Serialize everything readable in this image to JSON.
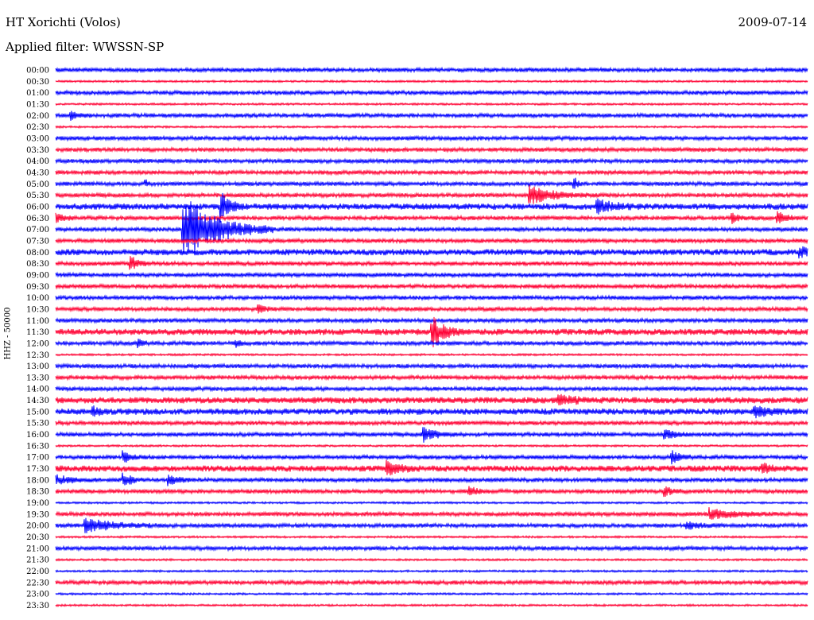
{
  "header": {
    "station": "HT Xorichti (Volos)",
    "date": "2009-07-14",
    "filter": "Applied filter: WWSSN-SP"
  },
  "chart_data": {
    "type": "line",
    "title": "HT Xorichti (Volos)",
    "subtitle": "Applied filter: WWSSN-SP",
    "ylabel": "HHZ - 50000",
    "xlabel": "",
    "grid": false,
    "colors": [
      "#0000ff",
      "#ff0033"
    ],
    "rows": [
      "00:00",
      "00:30",
      "01:00",
      "01:30",
      "02:00",
      "02:30",
      "03:00",
      "03:30",
      "04:00",
      "04:30",
      "05:00",
      "05:30",
      "06:00",
      "06:30",
      "07:00",
      "07:30",
      "08:00",
      "08:30",
      "09:00",
      "09:30",
      "10:00",
      "10:30",
      "11:00",
      "11:30",
      "12:00",
      "12:30",
      "13:00",
      "13:30",
      "14:00",
      "14:30",
      "15:00",
      "15:30",
      "16:00",
      "16:30",
      "17:00",
      "17:30",
      "18:00",
      "18:30",
      "19:00",
      "19:30",
      "20:00",
      "20:30",
      "21:00",
      "21:30",
      "22:00",
      "22:30",
      "23:00",
      "23:30"
    ],
    "noise_level": [
      2,
      1,
      2,
      1,
      2,
      1,
      2,
      2,
      2,
      2,
      2,
      2,
      3,
      2,
      2,
      2,
      3,
      2,
      2,
      2,
      2,
      2,
      2,
      3,
      2,
      1,
      2,
      2,
      2,
      3,
      3,
      2,
      2,
      1,
      2,
      3,
      2,
      2,
      1,
      2,
      2,
      1,
      2,
      1,
      1,
      2,
      1,
      1
    ],
    "events": [
      {
        "row": 4,
        "pos": 0.02,
        "amp": 6,
        "dur": 0.01
      },
      {
        "row": 10,
        "pos": 0.12,
        "amp": 4,
        "dur": 0.003
      },
      {
        "row": 10,
        "pos": 0.69,
        "amp": 8,
        "dur": 0.005
      },
      {
        "row": 11,
        "pos": 0.63,
        "amp": 12,
        "dur": 0.03
      },
      {
        "row": 12,
        "pos": 0.22,
        "amp": 20,
        "dur": 0.01
      },
      {
        "row": 12,
        "pos": 0.72,
        "amp": 8,
        "dur": 0.02
      },
      {
        "row": 13,
        "pos": 0.0,
        "amp": 6,
        "dur": 0.01
      },
      {
        "row": 13,
        "pos": 0.96,
        "amp": 8,
        "dur": 0.01
      },
      {
        "row": 13,
        "pos": 0.9,
        "amp": 6,
        "dur": 0.01
      },
      {
        "row": 14,
        "pos": 0.17,
        "amp": 45,
        "dur": 0.04
      },
      {
        "row": 16,
        "pos": 0.99,
        "amp": 6,
        "dur": 0.02
      },
      {
        "row": 17,
        "pos": 0.1,
        "amp": 10,
        "dur": 0.008
      },
      {
        "row": 21,
        "pos": 0.27,
        "amp": 5,
        "dur": 0.01
      },
      {
        "row": 23,
        "pos": 0.5,
        "amp": 20,
        "dur": 0.015
      },
      {
        "row": 24,
        "pos": 0.11,
        "amp": 6,
        "dur": 0.005
      },
      {
        "row": 24,
        "pos": 0.24,
        "amp": 5,
        "dur": 0.005
      },
      {
        "row": 29,
        "pos": 0.67,
        "amp": 6,
        "dur": 0.02
      },
      {
        "row": 30,
        "pos": 0.05,
        "amp": 5,
        "dur": 0.01
      },
      {
        "row": 30,
        "pos": 0.93,
        "amp": 6,
        "dur": 0.02
      },
      {
        "row": 32,
        "pos": 0.49,
        "amp": 10,
        "dur": 0.015
      },
      {
        "row": 32,
        "pos": 0.81,
        "amp": 6,
        "dur": 0.015
      },
      {
        "row": 34,
        "pos": 0.09,
        "amp": 7,
        "dur": 0.01
      },
      {
        "row": 34,
        "pos": 0.82,
        "amp": 8,
        "dur": 0.01
      },
      {
        "row": 35,
        "pos": 0.44,
        "amp": 9,
        "dur": 0.015
      },
      {
        "row": 35,
        "pos": 0.94,
        "amp": 6,
        "dur": 0.01
      },
      {
        "row": 36,
        "pos": 0.0,
        "amp": 6,
        "dur": 0.02
      },
      {
        "row": 36,
        "pos": 0.09,
        "amp": 10,
        "dur": 0.01
      },
      {
        "row": 36,
        "pos": 0.15,
        "amp": 8,
        "dur": 0.01
      },
      {
        "row": 37,
        "pos": 0.55,
        "amp": 6,
        "dur": 0.01
      },
      {
        "row": 37,
        "pos": 0.81,
        "amp": 6,
        "dur": 0.01
      },
      {
        "row": 39,
        "pos": 0.87,
        "amp": 7,
        "dur": 0.03
      },
      {
        "row": 40,
        "pos": 0.04,
        "amp": 9,
        "dur": 0.035
      },
      {
        "row": 40,
        "pos": 0.84,
        "amp": 4,
        "dur": 0.02
      }
    ]
  }
}
